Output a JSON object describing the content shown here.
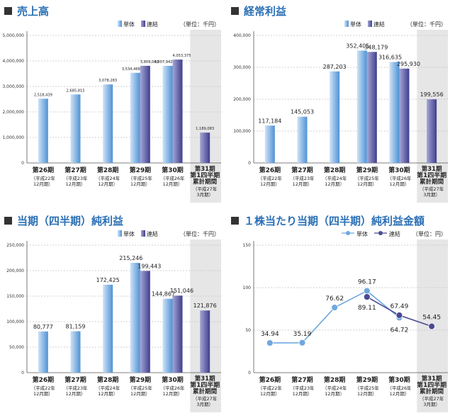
{
  "panels": [
    {
      "title": "売上高",
      "unit": "（単位：千円）",
      "chart_data": {
        "type": "bar",
        "categories": [
          "第26期",
          "第27期",
          "第28期",
          "第29期",
          "第30期",
          "第31期 第1四半期 累計期間"
        ],
        "sublabels": [
          "（平成22年 12月期）",
          "（平成23年 12月期）",
          "（平成24年 12月期）",
          "（平成25年 12月期）",
          "（平成26年 12月期）",
          "（平成27年 3月期）"
        ],
        "series": [
          {
            "name": "単体",
            "values": [
              2518439,
              2685815,
              3078283,
              3534468,
              3807942,
              null
            ],
            "labels": [
              "2,518,439",
              "2,685,815",
              "3,078,283",
              "3,534,468",
              "3,807,942",
              ""
            ]
          },
          {
            "name": "連結",
            "values": [
              null,
              null,
              null,
              3809040,
              4053375,
              1189083
            ],
            "labels": [
              "",
              "",
              "",
              "3,809,040",
              "4,053,375",
              "1,189,083"
            ]
          }
        ],
        "ylim": [
          0,
          5000000
        ],
        "yticks": [
          "0",
          "1,000,000",
          "2,000,000",
          "3,000,000",
          "4,000,000",
          "5,000,000"
        ],
        "grid": true,
        "legend": "top-right"
      }
    },
    {
      "title": "経常利益",
      "unit": "（単位：千円）",
      "chart_data": {
        "type": "bar",
        "categories": [
          "第26期",
          "第27期",
          "第28期",
          "第29期",
          "第30期",
          "第31期 第1四半期 累計期間"
        ],
        "sublabels": [
          "（平成22年 12月期）",
          "（平成23年 12月期）",
          "（平成24年 12月期）",
          "（平成25年 12月期）",
          "（平成26年 12月期）",
          "（平成27年 3月期）"
        ],
        "series": [
          {
            "name": "単体",
            "values": [
              117184,
              145053,
              287203,
              352405,
              316635,
              null
            ],
            "labels": [
              "117,184",
              "145,053",
              "287,203",
              "352,405",
              "316,635",
              ""
            ]
          },
          {
            "name": "連結",
            "values": [
              null,
              null,
              null,
              348179,
              295930,
              199556
            ],
            "labels": [
              "",
              "",
              "",
              "348,179",
              "295,930",
              "199,556"
            ]
          }
        ],
        "ylim": [
          0,
          400000
        ],
        "yticks": [
          "0",
          "100,000",
          "200,000",
          "300,000",
          "400,000"
        ],
        "grid": true,
        "legend": "top-right"
      }
    },
    {
      "title": "当期（四半期）純利益",
      "unit": "（単位：千円）",
      "chart_data": {
        "type": "bar",
        "categories": [
          "第26期",
          "第27期",
          "第28期",
          "第29期",
          "第30期",
          "第31期 第1四半期 累計期間"
        ],
        "sublabels": [
          "（平成22年 12月期）",
          "（平成23年 12月期）",
          "（平成24年 12月期）",
          "（平成25年 12月期）",
          "（平成26年 12月期）",
          "（平成27年 3月期）"
        ],
        "series": [
          {
            "name": "単体",
            "values": [
              80777,
              81159,
              172425,
              215246,
              144867,
              null
            ],
            "labels": [
              "80,777",
              "81,159",
              "172,425",
              "215,246",
              "144,867",
              ""
            ]
          },
          {
            "name": "連結",
            "values": [
              null,
              null,
              null,
              199443,
              151046,
              121876
            ],
            "labels": [
              "",
              "",
              "",
              "199,443",
              "151,046",
              "121,876"
            ]
          }
        ],
        "ylim": [
          0,
          250000
        ],
        "yticks": [
          "0",
          "50,000",
          "100,000",
          "150,000",
          "200,000",
          "250,000"
        ],
        "grid": true,
        "legend": "top-right"
      }
    },
    {
      "title": "１株当たり当期（四半期）純利益金額",
      "unit": "（単位：円）",
      "chart_data": {
        "type": "line",
        "categories": [
          "第26期",
          "第27期",
          "第28期",
          "第29期",
          "第30期",
          "第31期 第1四半期 累計期間"
        ],
        "sublabels": [
          "（平成22年 12月期）",
          "（平成23年 12月期）",
          "（平成24年 12月期）",
          "（平成25年 12月期）",
          "（平成26年 12月期）",
          "（平成27年 3月期）"
        ],
        "series": [
          {
            "name": "単体",
            "values": [
              34.94,
              35.19,
              76.62,
              96.17,
              64.72,
              null
            ],
            "labels": [
              "34.94",
              "35.19",
              "76.62",
              "96.17",
              "64.72",
              ""
            ]
          },
          {
            "name": "連結",
            "values": [
              null,
              null,
              null,
              89.11,
              67.49,
              54.45
            ],
            "labels": [
              "",
              "",
              "",
              "89.11",
              "67.49",
              "54.45"
            ]
          }
        ],
        "ylim": [
          0,
          150
        ],
        "yticks": [
          "0",
          "50",
          "100",
          "150"
        ],
        "grid": true,
        "legend": "top-right"
      }
    }
  ],
  "colors": {
    "title": "#2a6fb5",
    "bar_single_light": "#cfe3f7",
    "bar_single_dark": "#4f92d4",
    "bar_cons_light": "#a6a6d6",
    "bar_cons_dark": "#3e3e8e",
    "line_single": "#6fa8de",
    "line_cons": "#4a4a92",
    "shade": "#e6e6e6",
    "grid": "#c4c4c4"
  }
}
